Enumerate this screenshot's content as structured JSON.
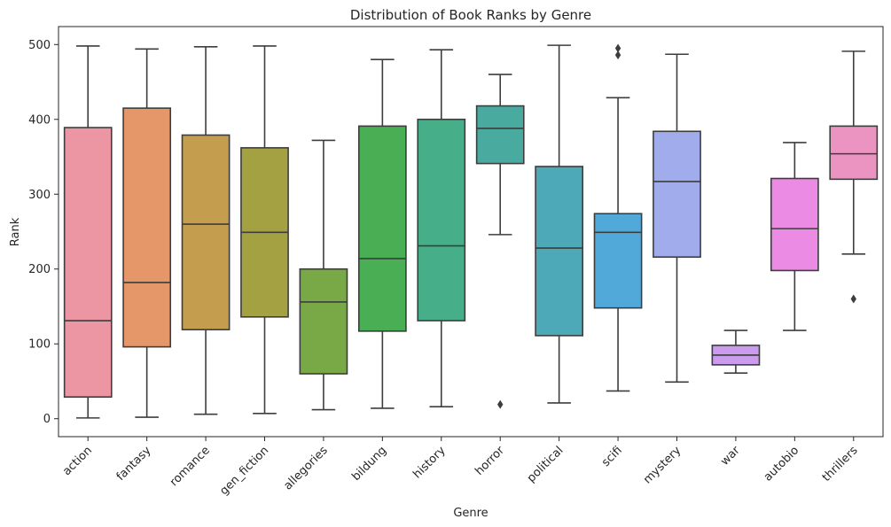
{
  "chart_data": {
    "type": "box",
    "title": "Distribution of Book Ranks by Genre",
    "xlabel": "Genre",
    "ylabel": "Rank",
    "ylim": [
      -24,
      524
    ],
    "yticks": [
      0,
      100,
      200,
      300,
      400,
      500
    ],
    "grid": false,
    "legend": "none",
    "categories": [
      "action",
      "fantasy",
      "romance",
      "gen_fiction",
      "allegories",
      "bildung",
      "history",
      "horror",
      "political",
      "scifi",
      "mystery",
      "war",
      "autobio",
      "thrillers"
    ],
    "boxes": [
      {
        "category": "action",
        "whisker_low": 1,
        "q1": 29,
        "median": 131,
        "q3": 389,
        "whisker_high": 498,
        "outliers": [],
        "color": "#EC96A3"
      },
      {
        "category": "fantasy",
        "whisker_low": 2,
        "q1": 96,
        "median": 182,
        "q3": 415,
        "whisker_high": 494,
        "outliers": [],
        "color": "#E5976A"
      },
      {
        "category": "romance",
        "whisker_low": 6,
        "q1": 119,
        "median": 260,
        "q3": 379,
        "whisker_high": 497,
        "outliers": [],
        "color": "#C49E4E"
      },
      {
        "category": "gen_fiction",
        "whisker_low": 7,
        "q1": 136,
        "median": 249,
        "q3": 362,
        "whisker_high": 498,
        "outliers": [],
        "color": "#A4A143"
      },
      {
        "category": "allegories",
        "whisker_low": 12,
        "q1": 60,
        "median": 156,
        "q3": 200,
        "whisker_high": 372,
        "outliers": [],
        "color": "#79A846"
      },
      {
        "category": "bildung",
        "whisker_low": 14,
        "q1": 117,
        "median": 214,
        "q3": 391,
        "whisker_high": 480,
        "outliers": [],
        "color": "#4AAE55"
      },
      {
        "category": "history",
        "whisker_low": 16,
        "q1": 131,
        "median": 231,
        "q3": 400,
        "whisker_high": 493,
        "outliers": [],
        "color": "#47AE8A"
      },
      {
        "category": "horror",
        "whisker_low": 246,
        "q1": 341,
        "median": 388,
        "q3": 418,
        "whisker_high": 460,
        "outliers": [
          19
        ],
        "color": "#49AB9F"
      },
      {
        "category": "political",
        "whisker_low": 21,
        "q1": 111,
        "median": 228,
        "q3": 337,
        "whisker_high": 499,
        "outliers": [],
        "color": "#4DA9B7"
      },
      {
        "category": "scifi",
        "whisker_low": 37,
        "q1": 148,
        "median": 249,
        "q3": 274,
        "whisker_high": 429,
        "outliers": [
          486,
          495
        ],
        "color": "#51A9DA"
      },
      {
        "category": "mystery",
        "whisker_low": 49,
        "q1": 216,
        "median": 317,
        "q3": 384,
        "whisker_high": 487,
        "outliers": [],
        "color": "#A1ACEC"
      },
      {
        "category": "war",
        "whisker_low": 61,
        "q1": 72,
        "median": 85,
        "q3": 98,
        "whisker_high": 118,
        "outliers": [],
        "color": "#CB9BEE"
      },
      {
        "category": "autobio",
        "whisker_low": 118,
        "q1": 198,
        "median": 254,
        "q3": 321,
        "whisker_high": 369,
        "outliers": [],
        "color": "#EC8BE3"
      },
      {
        "category": "thrillers",
        "whisker_low": 220,
        "q1": 320,
        "median": 354,
        "q3": 391,
        "whisker_high": 491,
        "outliers": [
          160
        ],
        "color": "#EB94C2"
      }
    ],
    "line_color": "#3d3d3d"
  }
}
